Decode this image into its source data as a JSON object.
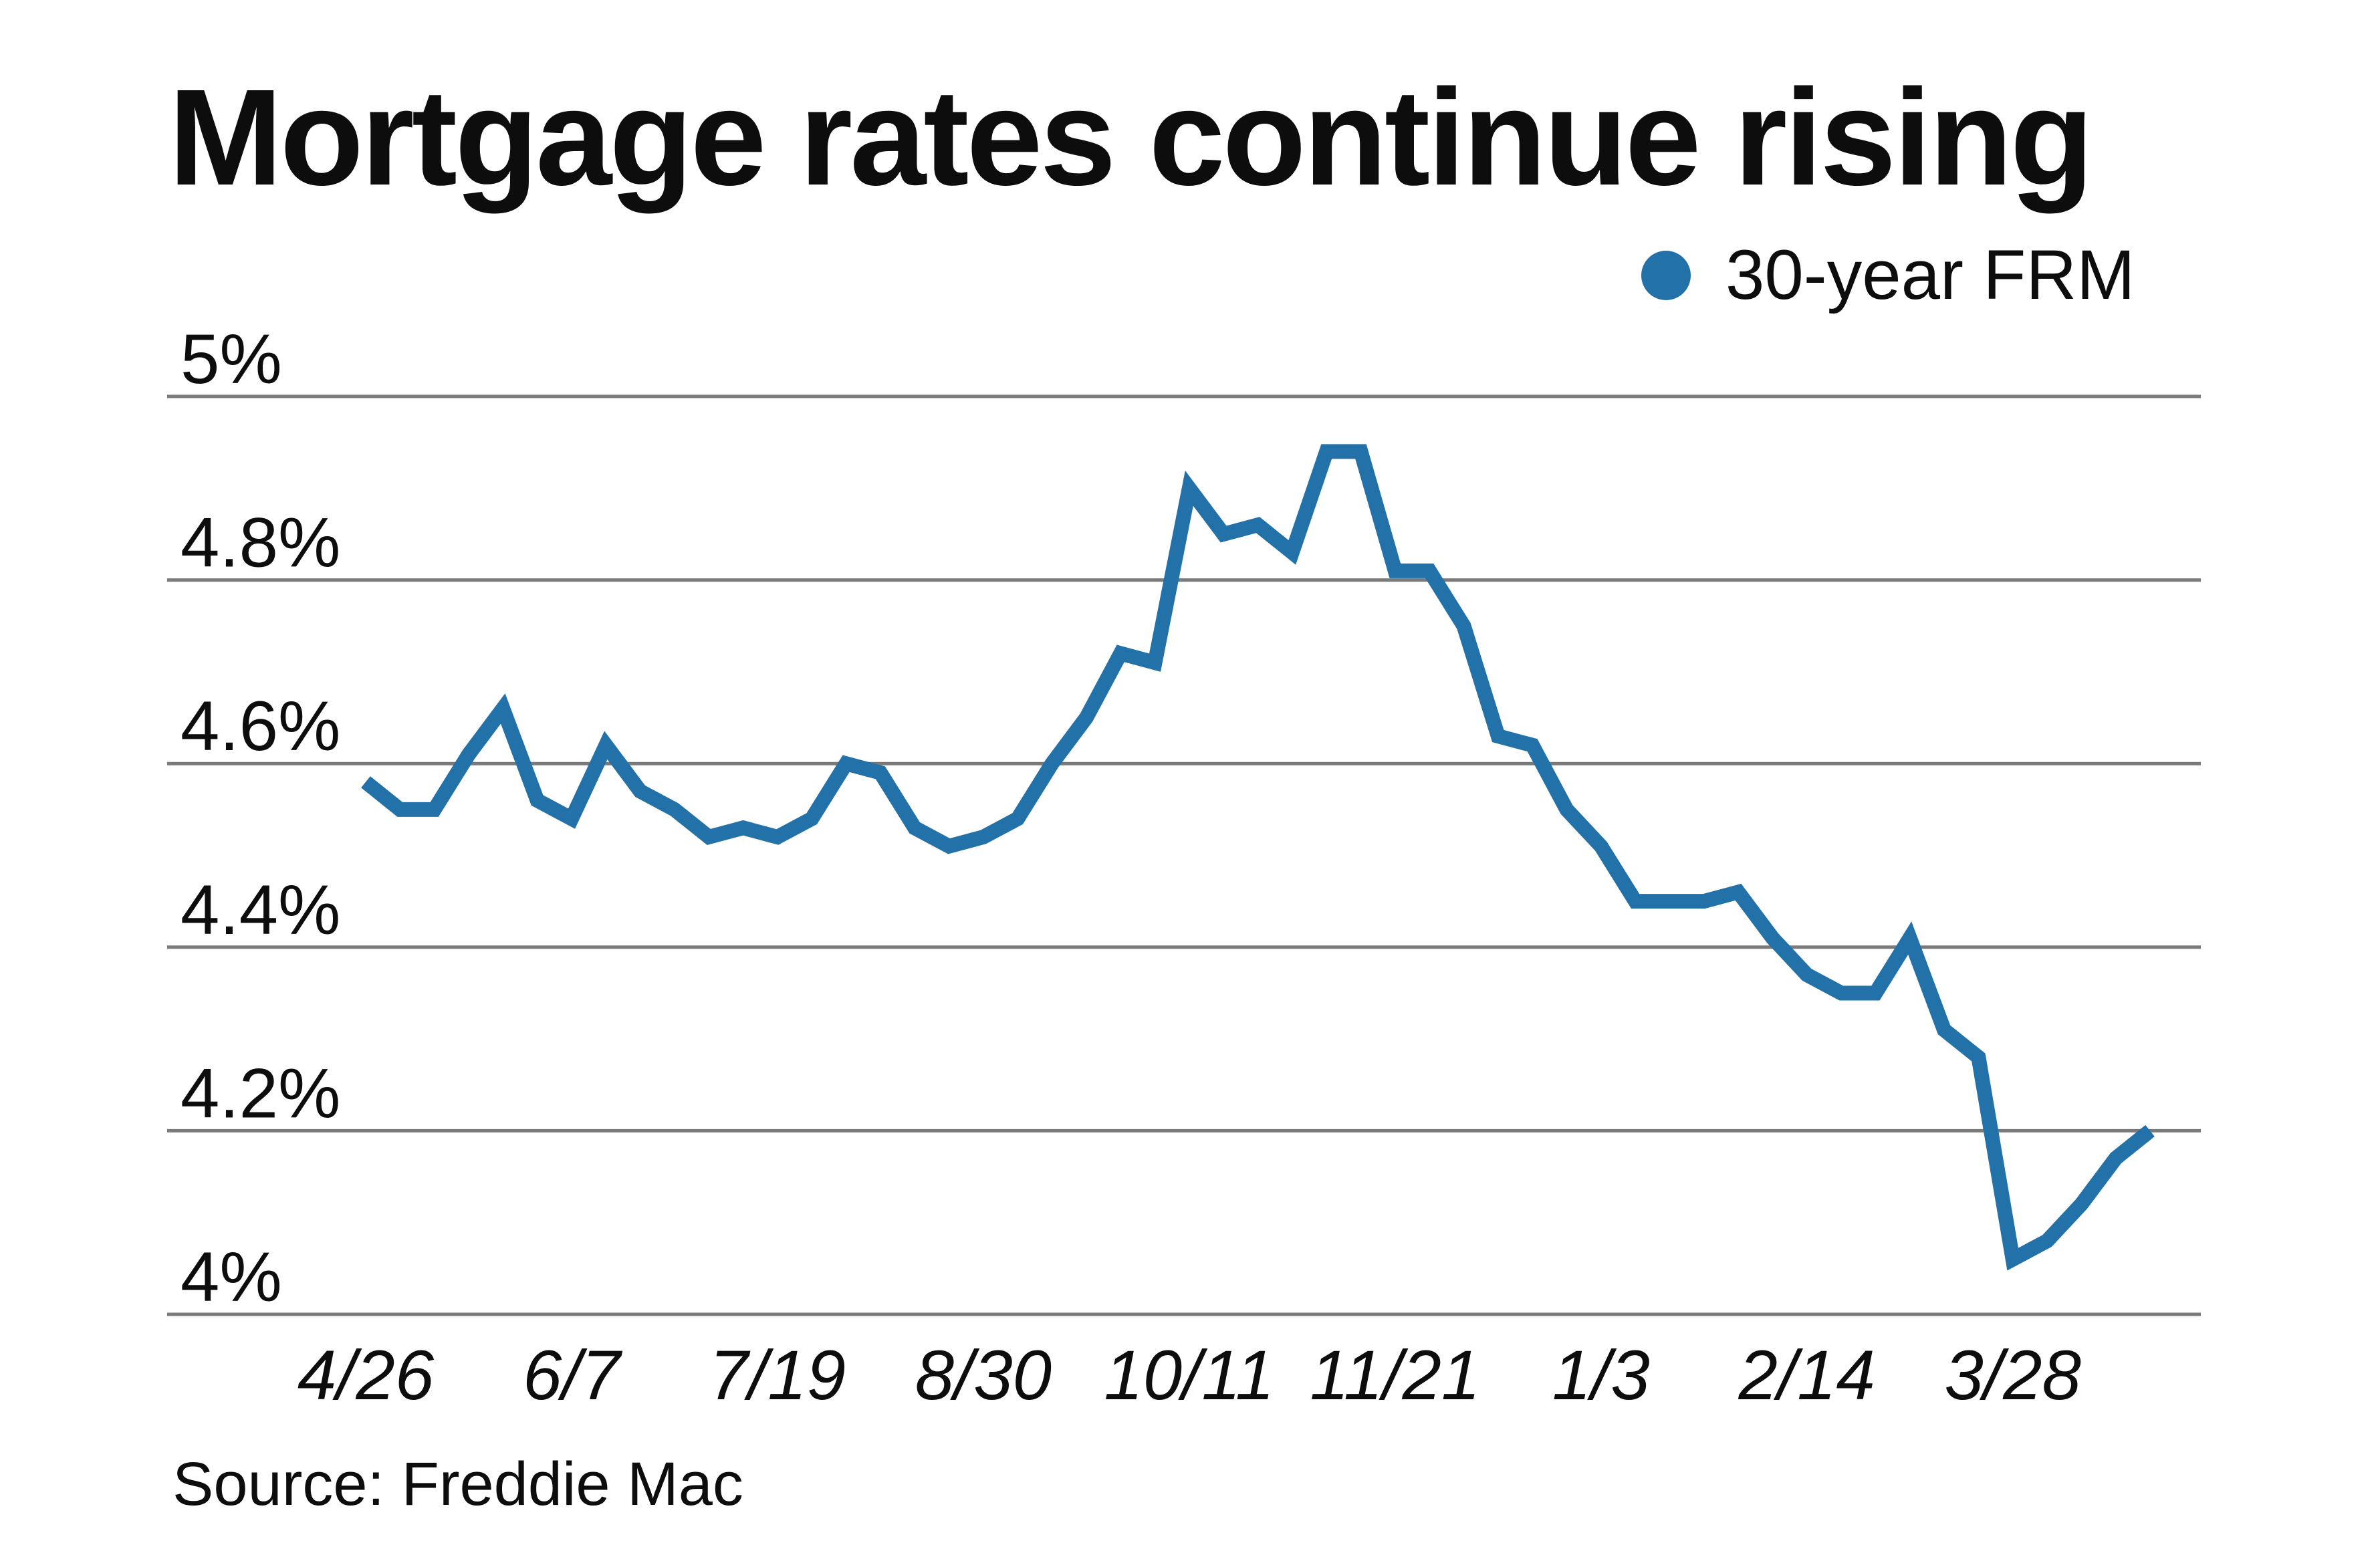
{
  "title": "Mortgage rates continue rising",
  "legend": {
    "label": "30-year FRM"
  },
  "source": "Source: Freddie Mac",
  "colors": {
    "line": "#2271a8",
    "legend_dot": "#2271a8",
    "grid": "#7a7a7a",
    "text": "#0d0d0d",
    "background": "#ffffff"
  },
  "chart_data": {
    "type": "line",
    "title": "Mortgage rates continue rising",
    "series": [
      {
        "name": "30-year FRM",
        "values": [
          4.58,
          4.55,
          4.55,
          4.61,
          4.66,
          4.56,
          4.54,
          4.62,
          4.57,
          4.55,
          4.52,
          4.53,
          4.52,
          4.54,
          4.6,
          4.59,
          4.53,
          4.51,
          4.52,
          4.54,
          4.6,
          4.65,
          4.72,
          4.71,
          4.9,
          4.85,
          4.86,
          4.83,
          4.94,
          4.94,
          4.81,
          4.81,
          4.75,
          4.63,
          4.62,
          4.55,
          4.51,
          4.45,
          4.45,
          4.45,
          4.46,
          4.41,
          4.37,
          4.35,
          4.35,
          4.41,
          4.31,
          4.28,
          4.06,
          4.08,
          4.12,
          4.17,
          4.2
        ]
      }
    ],
    "x_tick_labels": [
      "4/26",
      "6/7",
      "7/19",
      "8/30",
      "10/11",
      "11/21",
      "1/3",
      "2/14",
      "3/28"
    ],
    "x_tick_point_indices": [
      0,
      6,
      12,
      18,
      24,
      30,
      36,
      42,
      48
    ],
    "y_tick_labels": [
      "5%",
      "4.8%",
      "4.6%",
      "4.4%",
      "4.2%",
      "4%"
    ],
    "y_tick_values": [
      5.0,
      4.8,
      4.6,
      4.4,
      4.2,
      4.0
    ],
    "ylim": [
      4.0,
      5.0
    ],
    "grid": "horizontal-only",
    "legend_position": "top-right",
    "source": "Source: Freddie Mac"
  }
}
